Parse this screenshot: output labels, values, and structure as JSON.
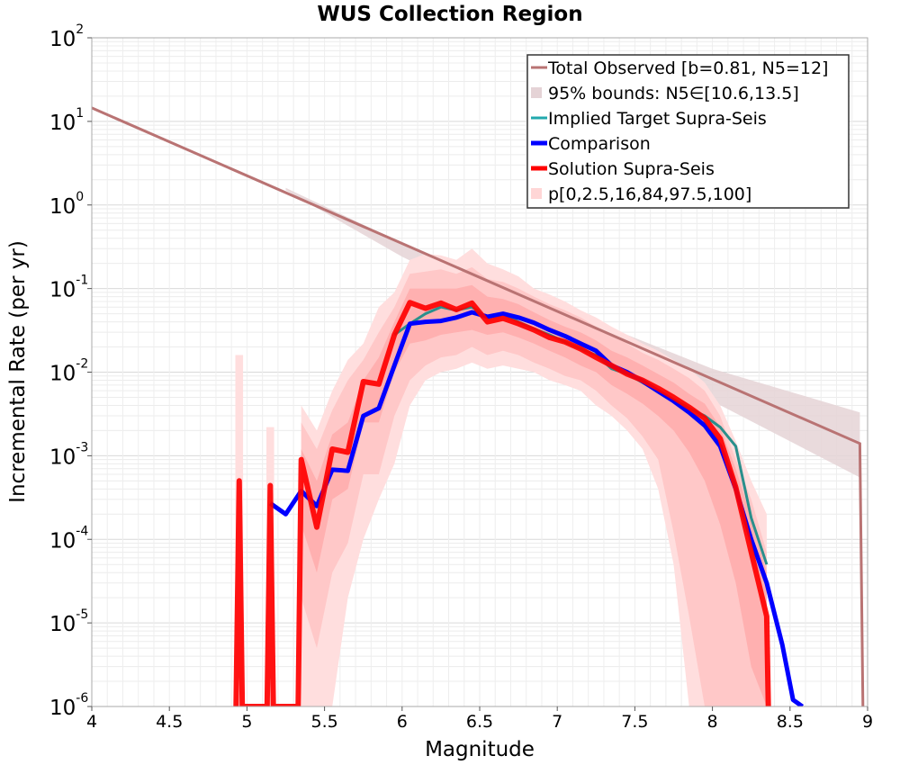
{
  "chart_data": {
    "type": "line",
    "title": "WUS Collection Region",
    "xlabel": "Magnitude",
    "ylabel": "Incremental Rate (per yr)",
    "xlim": [
      4,
      9
    ],
    "ylim": [
      1e-06,
      100
    ],
    "yscale": "log",
    "grid": true,
    "legend_position": "top-right",
    "x_ticks": [
      "4",
      "4.5",
      "5",
      "5.5",
      "6",
      "6.5",
      "7",
      "7.5",
      "8",
      "8.5",
      "9"
    ],
    "y_ticks": [
      {
        "base": "10",
        "exp": "2"
      },
      {
        "base": "10",
        "exp": "1"
      },
      {
        "base": "10",
        "exp": "0"
      },
      {
        "base": "10",
        "exp": "-1"
      },
      {
        "base": "10",
        "exp": "-2"
      },
      {
        "base": "10",
        "exp": "-3"
      },
      {
        "base": "10",
        "exp": "-4"
      },
      {
        "base": "10",
        "exp": "-5"
      },
      {
        "base": "10",
        "exp": "-6"
      }
    ],
    "legend": [
      {
        "label": "Total Observed [b=0.81, N5=12]",
        "color": "#b97373",
        "style": "line"
      },
      {
        "label": "95% bounds: N5∈[10.6,13.5]",
        "color": "#e5d3d6",
        "style": "box"
      },
      {
        "label": "Implied Target Supra-Seis",
        "color": "#22a8ad",
        "style": "line"
      },
      {
        "label": "Comparison",
        "color": "#0000ff",
        "style": "thick-line"
      },
      {
        "label": "Solution Supra-Seis",
        "color": "#ff0000",
        "style": "thick-line"
      },
      {
        "label": "p[0,2.5,16,84,97.5,100]",
        "color": "#ffd6d6",
        "style": "box"
      }
    ],
    "series": [
      {
        "name": "Total Observed [b=0.81, N5=12]",
        "color": "#b97373",
        "x": [
          4.0,
          8.95,
          8.97
        ],
        "y": [
          14.5,
          0.0014,
          1e-06
        ]
      },
      {
        "name": "95% bounds: N5∈[10.6,13.5]",
        "color": "#e5d3d6",
        "x": [
          5.25,
          6.0,
          7.0,
          8.0,
          8.95
        ],
        "y_low": [
          1.5,
          0.24,
          0.03,
          0.0045,
          0.00055
        ],
        "y_high": [
          1.6,
          0.35,
          0.06,
          0.011,
          0.0033
        ]
      },
      {
        "name": "Implied Target Supra-Seis",
        "color": "#2a8f8c",
        "x": [
          5.95,
          6.05,
          6.15,
          6.25,
          6.35,
          6.45,
          6.55,
          6.65,
          6.75,
          6.85,
          6.95,
          7.05,
          7.15,
          7.25,
          7.35,
          7.45,
          7.55,
          7.65,
          7.75,
          7.85,
          7.95,
          8.05,
          8.15,
          8.25,
          8.35
        ],
        "y": [
          0.028,
          0.038,
          0.05,
          0.06,
          0.055,
          0.06,
          0.045,
          0.05,
          0.04,
          0.033,
          0.028,
          0.023,
          0.019,
          0.016,
          0.011,
          0.0095,
          0.0075,
          0.0058,
          0.0047,
          0.0037,
          0.003,
          0.0022,
          0.0013,
          0.00018,
          5e-05
        ]
      },
      {
        "name": "Comparison",
        "color": "#0000ff",
        "x": [
          5.15,
          5.25,
          5.35,
          5.45,
          5.55,
          5.65,
          5.75,
          5.85,
          5.95,
          6.05,
          6.15,
          6.25,
          6.35,
          6.45,
          6.55,
          6.65,
          6.75,
          6.85,
          6.95,
          7.05,
          7.15,
          7.25,
          7.35,
          7.45,
          7.55,
          7.65,
          7.75,
          7.85,
          7.95,
          8.05,
          8.15,
          8.25,
          8.35,
          8.45,
          8.52,
          8.58
        ],
        "y": [
          0.00027,
          0.0002,
          0.00038,
          0.00025,
          0.00068,
          0.00066,
          0.003,
          0.0037,
          0.012,
          0.038,
          0.04,
          0.041,
          0.045,
          0.052,
          0.046,
          0.05,
          0.045,
          0.039,
          0.032,
          0.027,
          0.022,
          0.018,
          0.012,
          0.01,
          0.0078,
          0.0059,
          0.0045,
          0.0033,
          0.0023,
          0.0013,
          0.0004,
          0.0001,
          3e-05,
          5.5e-06,
          1.2e-06,
          1e-06
        ]
      },
      {
        "name": "Solution Supra-Seis",
        "color": "#ff0000",
        "x": [
          4.93,
          4.95,
          4.97,
          5.13,
          5.15,
          5.17,
          5.33,
          5.35,
          5.45,
          5.55,
          5.65,
          5.75,
          5.85,
          5.95,
          6.05,
          6.15,
          6.25,
          6.35,
          6.45,
          6.55,
          6.65,
          6.75,
          6.85,
          6.95,
          7.05,
          7.15,
          7.25,
          7.35,
          7.45,
          7.55,
          7.65,
          7.75,
          7.85,
          7.95,
          8.05,
          8.15,
          8.25,
          8.35,
          8.36
        ],
        "y": [
          1e-06,
          0.0005,
          1e-06,
          1e-06,
          0.00044,
          1e-06,
          1e-06,
          0.0009,
          0.00014,
          0.0012,
          0.0011,
          0.0077,
          0.0072,
          0.028,
          0.068,
          0.058,
          0.067,
          0.056,
          0.067,
          0.04,
          0.044,
          0.038,
          0.032,
          0.026,
          0.023,
          0.019,
          0.015,
          0.012,
          0.0095,
          0.008,
          0.0064,
          0.005,
          0.0038,
          0.0028,
          0.0016,
          0.00042,
          7e-05,
          1.2e-05,
          1e-06
        ]
      },
      {
        "name": "p[0,2.5,16,84,97.5,100]",
        "color": "#ffb0b0",
        "x": [
          5.35,
          5.45,
          5.55,
          5.65,
          5.75,
          5.85,
          5.95,
          6.05,
          6.15,
          6.25,
          6.35,
          6.45,
          6.55,
          6.65,
          6.75,
          6.85,
          6.95,
          7.05,
          7.15,
          7.25,
          7.35,
          7.45,
          7.55,
          7.65,
          7.75,
          7.85,
          7.95,
          8.05,
          8.15,
          8.25,
          8.35
        ],
        "bands": [
          {
            "lower": [
              1e-06,
              1e-06,
              1e-06,
              2e-05,
              0.0001,
              0.0003,
              0.0008,
              0.004,
              0.008,
              0.01,
              0.011,
              0.013,
              0.011,
              0.012,
              0.011,
              0.01,
              0.008,
              0.007,
              0.006,
              0.004,
              0.003,
              0.002,
              0.0012,
              0.0004,
              5e-05,
              1e-06,
              1e-06,
              1e-06,
              1e-06,
              1e-06,
              1e-06
            ],
            "upper": [
              0.004,
              0.002,
              0.006,
              0.014,
              0.022,
              0.06,
              0.09,
              0.22,
              0.26,
              0.25,
              0.22,
              0.3,
              0.2,
              0.17,
              0.14,
              0.1,
              0.085,
              0.07,
              0.055,
              0.045,
              0.035,
              0.028,
              0.022,
              0.018,
              0.014,
              0.011,
              0.0075,
              0.004,
              0.0015,
              0.0005,
              0.0002
            ]
          },
          {
            "lower": [
              2e-05,
              5e-06,
              4e-05,
              9e-05,
              0.0006,
              0.0006,
              0.003,
              0.008,
              0.012,
              0.015,
              0.016,
              0.02,
              0.016,
              0.018,
              0.016,
              0.013,
              0.011,
              0.009,
              0.008,
              0.006,
              0.004,
              0.0028,
              0.0017,
              0.0009,
              0.00012,
              1.2e-05,
              1e-06,
              1e-06,
              1e-06,
              1e-06,
              1e-06
            ],
            "upper": [
              0.0025,
              0.0012,
              0.0035,
              0.008,
              0.014,
              0.03,
              0.06,
              0.15,
              0.16,
              0.17,
              0.15,
              0.18,
              0.13,
              0.12,
              0.1,
              0.08,
              0.065,
              0.055,
              0.045,
              0.035,
              0.028,
              0.022,
              0.017,
              0.014,
              0.011,
              0.0085,
              0.006,
              0.003,
              0.0009,
              0.0003,
              7e-05
            ]
          },
          {
            "lower": [
              0.00015,
              4e-05,
              0.0003,
              0.0004,
              0.0025,
              0.0025,
              0.01,
              0.022,
              0.024,
              0.028,
              0.03,
              0.032,
              0.028,
              0.03,
              0.026,
              0.022,
              0.018,
              0.015,
              0.012,
              0.01,
              0.007,
              0.0055,
              0.0042,
              0.003,
              0.002,
              0.0011,
              0.0005,
              0.00015,
              3e-05,
              3e-06,
              1e-06
            ],
            "upper": [
              0.0012,
              0.0005,
              0.0018,
              0.0025,
              0.008,
              0.015,
              0.04,
              0.1,
              0.1,
              0.1,
              0.1,
              0.11,
              0.08,
              0.075,
              0.065,
              0.052,
              0.042,
              0.035,
              0.03,
              0.024,
              0.018,
              0.015,
              0.012,
              0.0095,
              0.0075,
              0.0055,
              0.0042,
              0.0022,
              0.0007,
              0.00018,
              4e-05
            ]
          }
        ]
      }
    ]
  }
}
